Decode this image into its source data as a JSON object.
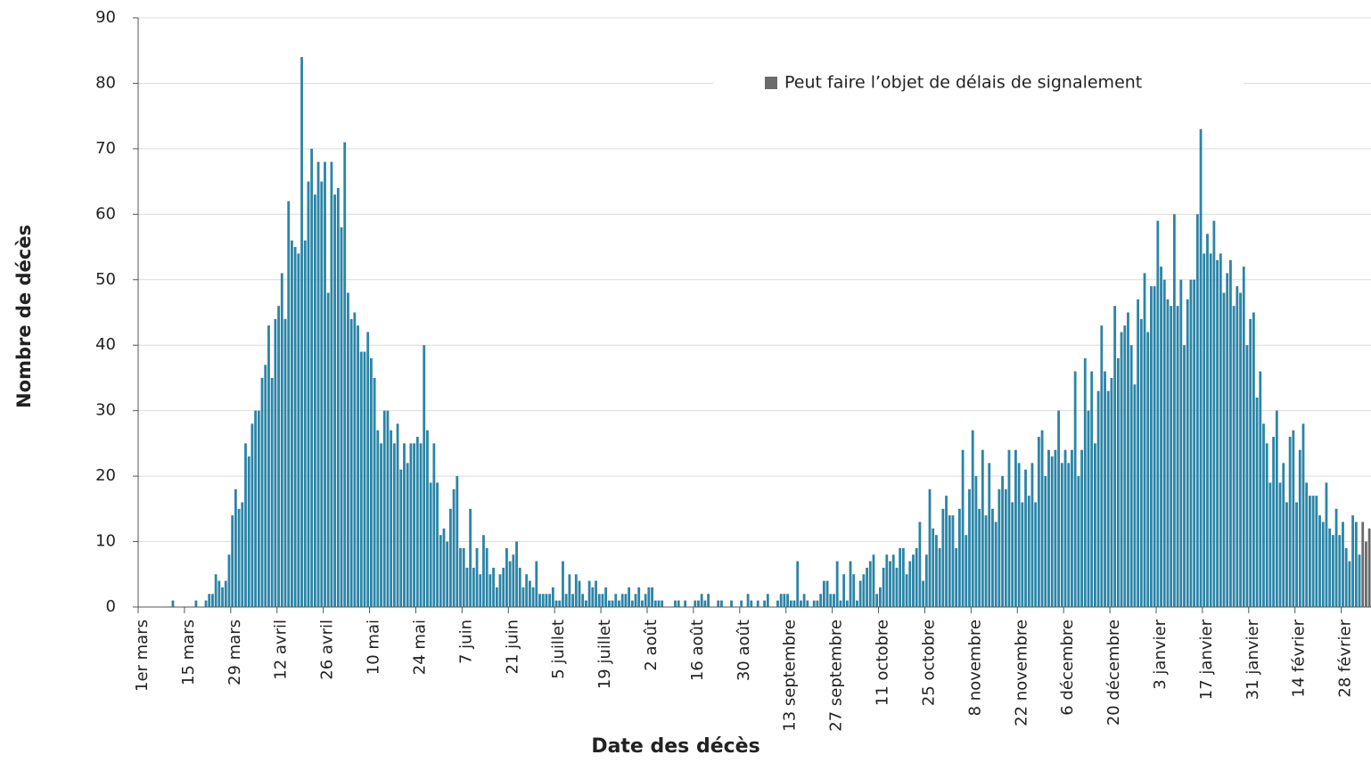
{
  "chart_data": {
    "type": "bar",
    "x_label": "Date des décès",
    "y_label": "Nombre de décès",
    "ylim": [
      0,
      90
    ],
    "yticks": [
      0,
      10,
      20,
      30,
      40,
      50,
      60,
      70,
      80,
      90
    ],
    "grid": true,
    "legend": "upper right",
    "categories": [
      "1er mars",
      null,
      null,
      null,
      null,
      null,
      null,
      null,
      null,
      null,
      null,
      null,
      null,
      null,
      "15 mars",
      null,
      null,
      null,
      null,
      null,
      null,
      null,
      null,
      null,
      null,
      null,
      null,
      null,
      "29 mars",
      null,
      null,
      null,
      null,
      null,
      null,
      null,
      null,
      null,
      null,
      null,
      null,
      null,
      "12 avril",
      null,
      null,
      null,
      null,
      null,
      null,
      null,
      null,
      null,
      null,
      null,
      null,
      null,
      "26 avril",
      null,
      null,
      null,
      null,
      null,
      null,
      null,
      null,
      null,
      null,
      null,
      null,
      null,
      "10 mai",
      null,
      null,
      null,
      null,
      null,
      null,
      null,
      null,
      null,
      null,
      null,
      null,
      null,
      "24 mai",
      null,
      null,
      null,
      null,
      null,
      null,
      null,
      null,
      null,
      null,
      null,
      null,
      null,
      "7 juin",
      null,
      null,
      null,
      null,
      null,
      null,
      null,
      null,
      null,
      null,
      null,
      null,
      null,
      "21 juin",
      null,
      null,
      null,
      null,
      null,
      null,
      null,
      null,
      null,
      null,
      null,
      null,
      null,
      "5 juillet",
      null,
      null,
      null,
      null,
      null,
      null,
      null,
      null,
      null,
      null,
      null,
      null,
      null,
      "19 juillet",
      null,
      null,
      null,
      null,
      null,
      null,
      null,
      null,
      null,
      null,
      null,
      null,
      null,
      "2 août",
      null,
      null,
      null,
      null,
      null,
      null,
      null,
      null,
      null,
      null,
      null,
      null,
      null,
      "16 août",
      null,
      null,
      null,
      null,
      null,
      null,
      null,
      null,
      null,
      null,
      null,
      null,
      null,
      "30 août",
      null,
      null,
      null,
      null,
      null,
      null,
      null,
      null,
      null,
      null,
      null,
      null,
      null,
      "13 septembre",
      null,
      null,
      null,
      null,
      null,
      null,
      null,
      null,
      null,
      null,
      null,
      null,
      null,
      "27 septembre",
      null,
      null,
      null,
      null,
      null,
      null,
      null,
      null,
      null,
      null,
      null,
      null,
      null,
      "11 octobre",
      null,
      null,
      null,
      null,
      null,
      null,
      null,
      null,
      null,
      null,
      null,
      null,
      null,
      "25 octobre",
      null,
      null,
      null,
      null,
      null,
      null,
      null,
      null,
      null,
      null,
      null,
      null,
      null,
      "8 novembre",
      null,
      null,
      null,
      null,
      null,
      null,
      null,
      null,
      null,
      null,
      null,
      null,
      null,
      "22 novembre",
      null,
      null,
      null,
      null,
      null,
      null,
      null,
      null,
      null,
      null,
      null,
      null,
      null,
      "6 décembre",
      null,
      null,
      null,
      null,
      null,
      null,
      null,
      null,
      null,
      null,
      null,
      null,
      null,
      "20 décembre",
      null,
      null,
      null,
      null,
      null,
      null,
      null,
      null,
      null,
      null,
      null,
      null,
      null,
      "3 janvier",
      null,
      null,
      null,
      null,
      null,
      null,
      null,
      null,
      null,
      null,
      null,
      null,
      null,
      "17 janvier",
      null,
      null,
      null,
      null,
      null,
      null,
      null,
      null,
      null,
      null,
      null,
      null,
      null,
      "31 janvier",
      null,
      null,
      null,
      null,
      null,
      null,
      null,
      null,
      null,
      null,
      null,
      null,
      null,
      "14 février",
      null,
      null,
      null,
      null,
      null,
      null,
      null,
      null,
      null,
      null,
      null,
      null,
      null,
      "28 février",
      null,
      null,
      null,
      null,
      null,
      null,
      null,
      null
    ],
    "series": [
      {
        "color": "#2b85a7",
        "values": [
          0,
          0,
          0,
          0,
          0,
          0,
          0,
          0,
          0,
          0,
          1,
          0,
          0,
          0,
          0,
          0,
          0,
          1,
          0,
          0,
          1,
          2,
          2,
          5,
          4,
          3,
          4,
          8,
          14,
          18,
          15,
          16,
          25,
          23,
          28,
          30,
          30,
          35,
          37,
          43,
          35,
          44,
          46,
          51,
          44,
          62,
          56,
          55,
          54,
          84,
          56,
          65,
          70,
          63,
          68,
          65,
          68,
          48,
          68,
          63,
          64,
          58,
          71,
          48,
          44,
          45,
          43,
          39,
          39,
          42,
          38,
          35,
          27,
          25,
          30,
          30,
          27,
          25,
          28,
          21,
          25,
          22,
          25,
          25,
          26,
          25,
          40,
          27,
          19,
          25,
          19,
          11,
          12,
          10,
          15,
          18,
          20,
          9,
          9,
          6,
          15,
          6,
          9,
          5,
          11,
          9,
          5,
          6,
          3,
          5,
          6,
          9,
          7,
          8,
          10,
          6,
          3,
          5,
          4,
          3,
          7,
          2,
          2,
          2,
          2,
          3,
          1,
          1,
          7,
          2,
          5,
          2,
          5,
          4,
          2,
          1,
          4,
          3,
          4,
          2,
          2,
          3,
          1,
          1,
          2,
          1,
          2,
          2,
          3,
          1,
          2,
          3,
          1,
          2,
          3,
          3,
          1,
          1,
          1,
          0,
          0,
          0,
          1,
          1,
          0,
          1,
          0,
          0,
          1,
          1,
          2,
          1,
          2,
          0,
          0,
          1,
          1,
          0,
          0,
          1,
          0,
          0,
          1,
          0,
          2,
          1,
          0,
          1,
          0,
          1,
          2,
          0,
          0,
          1,
          2,
          2,
          2,
          1,
          1,
          7,
          1,
          2,
          1,
          0,
          1,
          1,
          2,
          4,
          4,
          2,
          2,
          7,
          1,
          5,
          1,
          7,
          5,
          1,
          4,
          5,
          6,
          7,
          8,
          2,
          3,
          6,
          8,
          7,
          8,
          6,
          9,
          9,
          5,
          7,
          8,
          9,
          13,
          4,
          8,
          18,
          12,
          11,
          9,
          15,
          17,
          14,
          14,
          9,
          15,
          24,
          11,
          18,
          27,
          20,
          15,
          24,
          14,
          22,
          15,
          13,
          18,
          20,
          18,
          24,
          16,
          24,
          22,
          16,
          21,
          17,
          22,
          16,
          26,
          27,
          20,
          24,
          23,
          24,
          30,
          22,
          24,
          22,
          24,
          36,
          20,
          24,
          38,
          30,
          36,
          25,
          33,
          43,
          36,
          33,
          35,
          46,
          38,
          42,
          43,
          45,
          40,
          34,
          47,
          44,
          51,
          42,
          49,
          49,
          59,
          52,
          50,
          47,
          46,
          60,
          46,
          50,
          40,
          47,
          50,
          50,
          60,
          73,
          54,
          57,
          54,
          59,
          53,
          54,
          48,
          51,
          53,
          46,
          49,
          48,
          52,
          40,
          44,
          45,
          32,
          36,
          28,
          25,
          19,
          26,
          30,
          19,
          22,
          16,
          26,
          27,
          16,
          24,
          28,
          19,
          17,
          17,
          17,
          14,
          13,
          19,
          12,
          11,
          15,
          11,
          13,
          9,
          7,
          14,
          13,
          8,
          null,
          null,
          null
        ]
      },
      {
        "name": "Peut faire l’objet de délais de signalement",
        "color": "#6b6b6b",
        "values": [
          null,
          null,
          null,
          null,
          null,
          null,
          null,
          null,
          null,
          null,
          null,
          null,
          null,
          null,
          null,
          null,
          null,
          null,
          null,
          null,
          null,
          null,
          null,
          null,
          null,
          null,
          null,
          null,
          null,
          null,
          null,
          null,
          null,
          null,
          null,
          null,
          null,
          null,
          null,
          null,
          null,
          null,
          null,
          null,
          null,
          null,
          null,
          null,
          null,
          null,
          null,
          null,
          null,
          null,
          null,
          null,
          null,
          null,
          null,
          null,
          null,
          null,
          null,
          null,
          null,
          null,
          null,
          null,
          null,
          null,
          null,
          null,
          null,
          null,
          null,
          null,
          null,
          null,
          null,
          null,
          null,
          null,
          null,
          null,
          null,
          null,
          null,
          null,
          null,
          null,
          null,
          null,
          null,
          null,
          null,
          null,
          null,
          null,
          null,
          null,
          null,
          null,
          null,
          null,
          null,
          null,
          null,
          null,
          null,
          null,
          null,
          null,
          null,
          null,
          null,
          null,
          null,
          null,
          null,
          null,
          null,
          null,
          null,
          null,
          null,
          null,
          null,
          null,
          null,
          null,
          null,
          null,
          null,
          null,
          null,
          null,
          null,
          null,
          null,
          null,
          null,
          null,
          null,
          null,
          null,
          null,
          null,
          null,
          null,
          null,
          null,
          null,
          null,
          null,
          null,
          null,
          null,
          null,
          null,
          null,
          null,
          null,
          null,
          null,
          null,
          null,
          null,
          null,
          null,
          null,
          null,
          null,
          null,
          null,
          null,
          null,
          null,
          null,
          null,
          null,
          null,
          null,
          null,
          null,
          null,
          null,
          null,
          null,
          null,
          null,
          null,
          null,
          null,
          null,
          null,
          null,
          null,
          null,
          null,
          null,
          null,
          null,
          null,
          null,
          null,
          null,
          null,
          null,
          null,
          null,
          null,
          null,
          null,
          null,
          null,
          null,
          null,
          null,
          null,
          null,
          null,
          null,
          null,
          null,
          null,
          null,
          null,
          null,
          null,
          null,
          null,
          null,
          null,
          null,
          null,
          null,
          null,
          null,
          null,
          null,
          null,
          null,
          null,
          null,
          null,
          null,
          null,
          null,
          null,
          null,
          null,
          null,
          null,
          null,
          null,
          null,
          null,
          null,
          null,
          null,
          null,
          null,
          null,
          null,
          null,
          null,
          null,
          null,
          null,
          null,
          null,
          null,
          null,
          null,
          null,
          null,
          null,
          null,
          null,
          null,
          null,
          null,
          null,
          null,
          null,
          null,
          null,
          null,
          null,
          null,
          null,
          null,
          null,
          null,
          null,
          null,
          null,
          null,
          null,
          null,
          null,
          null,
          null,
          null,
          null,
          null,
          null,
          null,
          null,
          null,
          null,
          null,
          null,
          null,
          null,
          null,
          null,
          null,
          null,
          null,
          null,
          null,
          null,
          null,
          null,
          null,
          null,
          null,
          null,
          null,
          null,
          null,
          null,
          null,
          null,
          null,
          null,
          null,
          null,
          null,
          null,
          null,
          null,
          null,
          null,
          null,
          null,
          null,
          null,
          null,
          null,
          null,
          null,
          null,
          null,
          null,
          null,
          null,
          null,
          null,
          null,
          null,
          null,
          null,
          null,
          null,
          null,
          null,
          null,
          null,
          13,
          10,
          12
        ]
      }
    ]
  }
}
